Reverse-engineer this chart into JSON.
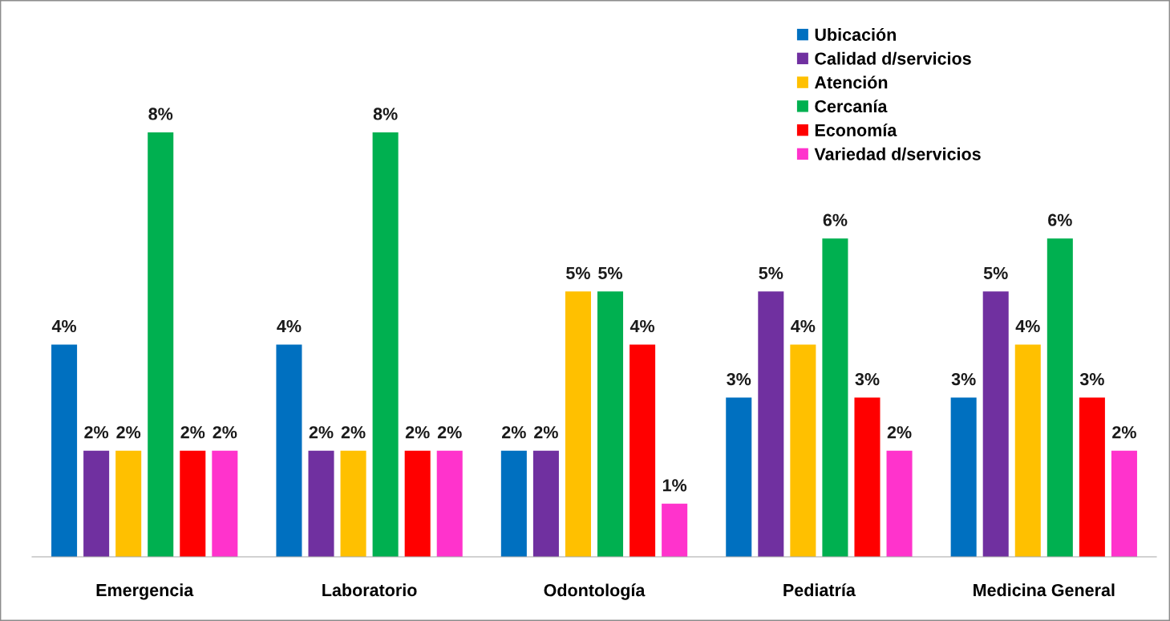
{
  "chart_data": {
    "type": "bar",
    "categories": [
      "Emergencia",
      "Laboratorio",
      "Odontología",
      "Pediatría",
      "Medicina General"
    ],
    "series": [
      {
        "name": "Ubicación",
        "color": "#0070c0",
        "values": [
          4,
          4,
          2,
          3,
          3
        ],
        "value_labels": [
          "4%",
          "4%",
          "2%",
          "3%",
          "3%"
        ]
      },
      {
        "name": "Calidad d/servicios",
        "color": "#7030a0",
        "values": [
          2,
          2,
          2,
          5,
          5
        ],
        "value_labels": [
          "2%",
          "2%",
          "2%",
          "5%",
          "5%"
        ]
      },
      {
        "name": "Atención",
        "color": "#ffc000",
        "values": [
          2,
          2,
          5,
          4,
          4
        ],
        "value_labels": [
          "2%",
          "2%",
          "5%",
          "4%",
          "4%"
        ]
      },
      {
        "name": "Cercanía",
        "color": "#00b050",
        "values": [
          8,
          8,
          5,
          6,
          6
        ],
        "value_labels": [
          "8%",
          "8%",
          "5%",
          "6%",
          "6%"
        ]
      },
      {
        "name": "Economía",
        "color": "#ff0000",
        "values": [
          2,
          2,
          4,
          3,
          3
        ],
        "value_labels": [
          "2%",
          "2%",
          "4%",
          "3%",
          "3%"
        ]
      },
      {
        "name": "Variedad d/servicios",
        "color": "#ff33cc",
        "values": [
          2,
          2,
          1,
          2,
          2
        ],
        "value_labels": [
          "2%",
          "2%",
          "1%",
          "2%",
          "2%"
        ]
      }
    ],
    "legend": "top right",
    "grid": false,
    "tick_labels": "x"
  }
}
